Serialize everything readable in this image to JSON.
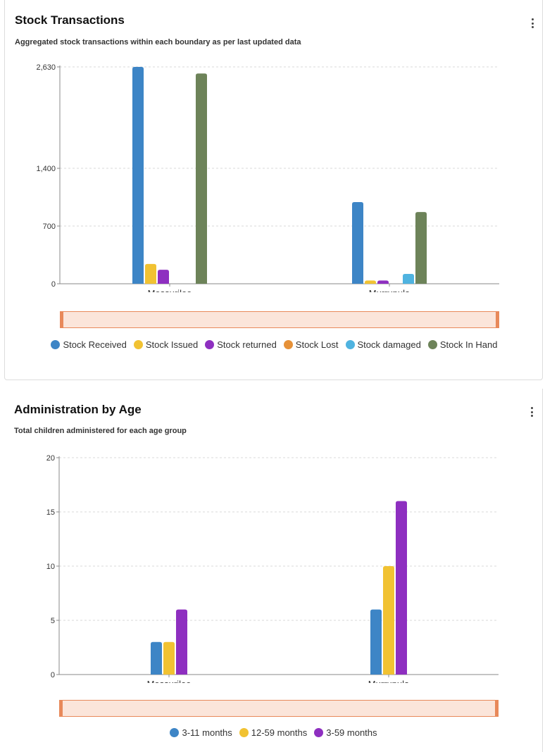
{
  "cards": [
    {
      "title": "Stock Transactions",
      "subtitle": "Aggregated stock transactions within each boundary as per last updated data",
      "legend": [
        {
          "label": "Stock Received",
          "color": "#3d85c6"
        },
        {
          "label": "Stock Issued",
          "color": "#f1c232"
        },
        {
          "label": "Stock returned",
          "color": "#8e2fc0"
        },
        {
          "label": "Stock Lost",
          "color": "#e69138"
        },
        {
          "label": "Stock damaged",
          "color": "#4fb3e0"
        },
        {
          "label": "Stock In Hand",
          "color": "#6d8359"
        }
      ]
    },
    {
      "title": "Administration by Age",
      "subtitle": "Total children administered for each age group",
      "legend": [
        {
          "label": "3-11 months",
          "color": "#3d85c6"
        },
        {
          "label": "12-59 months",
          "color": "#f1c232"
        },
        {
          "label": "3-59 months",
          "color": "#8e2fc0"
        }
      ]
    }
  ],
  "chart_data": [
    {
      "type": "bar",
      "title": "Stock Transactions",
      "categories": [
        "Mossurilee",
        "Murrupula"
      ],
      "series": [
        {
          "name": "Stock Received",
          "color": "#3d85c6",
          "values": [
            2630,
            990
          ]
        },
        {
          "name": "Stock Issued",
          "color": "#f1c232",
          "values": [
            240,
            40
          ]
        },
        {
          "name": "Stock returned",
          "color": "#8e2fc0",
          "values": [
            170,
            40
          ]
        },
        {
          "name": "Stock Lost",
          "color": "#e69138",
          "values": [
            0,
            0
          ]
        },
        {
          "name": "Stock damaged",
          "color": "#4fb3e0",
          "values": [
            0,
            120
          ]
        },
        {
          "name": "Stock In Hand",
          "color": "#6d8359",
          "values": [
            2550,
            870
          ]
        }
      ],
      "yticks": [
        0,
        700,
        1400,
        2630
      ],
      "ytick_labels": [
        "0",
        "700",
        "1,400",
        "2,630"
      ],
      "ylim": [
        0,
        2630
      ],
      "grid": true,
      "legend_position": "bottom"
    },
    {
      "type": "bar",
      "title": "Administration by Age",
      "categories": [
        "Mossurilee",
        "Murrupula"
      ],
      "series": [
        {
          "name": "3-11 months",
          "color": "#3d85c6",
          "values": [
            3,
            6
          ]
        },
        {
          "name": "12-59 months",
          "color": "#f1c232",
          "values": [
            3,
            10
          ]
        },
        {
          "name": "3-59 months",
          "color": "#8e2fc0",
          "values": [
            6,
            16
          ]
        }
      ],
      "yticks": [
        0,
        5,
        10,
        15,
        20
      ],
      "ytick_labels": [
        "0",
        "5",
        "10",
        "15",
        "20"
      ],
      "ylim": [
        0,
        20
      ],
      "grid": true,
      "legend_position": "bottom"
    }
  ]
}
